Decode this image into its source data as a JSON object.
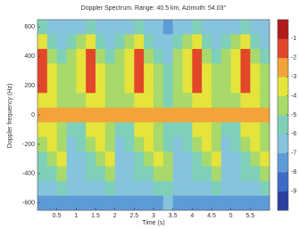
{
  "chart_data": {
    "type": "heatmap",
    "title": "Doppler Spectrum. Range: 40.5 km, Azimuth: 54.03°",
    "xlabel": "Time (s)",
    "ylabel": "Doppler frequency (Hz)",
    "x": [
      0.125,
      0.375,
      0.625,
      0.875,
      1.125,
      1.375,
      1.625,
      1.875,
      2.125,
      2.375,
      2.625,
      2.875,
      3.125,
      3.375,
      3.625,
      3.875,
      4.125,
      4.375,
      4.625,
      4.875,
      5.125,
      5.375,
      5.625,
      5.875
    ],
    "y": [
      600,
      500,
      400,
      300,
      200,
      100,
      0,
      -100,
      -200,
      -300,
      -400,
      -500,
      -600
    ],
    "z": [
      [
        -6,
        -7,
        -7,
        -7,
        -7,
        -6,
        -7,
        -7,
        -7,
        -7,
        -6,
        -7,
        -7,
        -8,
        -7,
        -7,
        -6,
        -7,
        -7,
        -7,
        -7,
        -6,
        -7,
        -7
      ],
      [
        -4,
        -6,
        -7,
        -6,
        -5,
        -4,
        -6,
        -7,
        -6,
        -5,
        -4,
        -6,
        -7,
        -7,
        -6,
        -5,
        -4,
        -6,
        -7,
        -6,
        -5,
        -4,
        -6,
        -7
      ],
      [
        -2,
        -5,
        -6,
        -5,
        -4,
        -2,
        -5,
        -6,
        -5,
        -4,
        -2,
        -5,
        -6,
        -7,
        -5,
        -4,
        -2,
        -5,
        -6,
        -5,
        -4,
        -2,
        -5,
        -6
      ],
      [
        -2,
        -4,
        -5,
        -5,
        -4,
        -2,
        -4,
        -5,
        -5,
        -4,
        -2,
        -4,
        -5,
        -6,
        -5,
        -4,
        -2,
        -4,
        -5,
        -5,
        -4,
        -2,
        -4,
        -5
      ],
      [
        -2,
        -4,
        -5,
        -5,
        -4,
        -2,
        -4,
        -5,
        -5,
        -4,
        -2,
        -4,
        -5,
        -6,
        -5,
        -4,
        -2,
        -4,
        -5,
        -5,
        -4,
        -2,
        -4,
        -5
      ],
      [
        -4,
        -4,
        -5,
        -5,
        -5,
        -4,
        -4,
        -5,
        -5,
        -5,
        -4,
        -4,
        -5,
        -6,
        -5,
        -5,
        -4,
        -4,
        -5,
        -5,
        -5,
        -4,
        -4,
        -5
      ],
      [
        -3,
        -3,
        -3,
        -3,
        -3,
        -3,
        -3,
        -3,
        -3,
        -3,
        -3,
        -3,
        -3,
        -3,
        -3,
        -3,
        -3,
        -3,
        -3,
        -3,
        -3,
        -3,
        -3,
        -3
      ],
      [
        -4,
        -4,
        -5,
        -6,
        -6,
        -4,
        -4,
        -5,
        -6,
        -6,
        -4,
        -4,
        -5,
        -6,
        -6,
        -6,
        -4,
        -4,
        -5,
        -6,
        -6,
        -4,
        -4,
        -5
      ],
      [
        -5,
        -4,
        -5,
        -7,
        -6,
        -5,
        -4,
        -5,
        -7,
        -6,
        -5,
        -4,
        -5,
        -6,
        -7,
        -6,
        -5,
        -4,
        -5,
        -7,
        -6,
        -5,
        -4,
        -5
      ],
      [
        -6,
        -5,
        -4,
        -7,
        -7,
        -6,
        -5,
        -4,
        -7,
        -7,
        -6,
        -5,
        -4,
        -5,
        -7,
        -7,
        -6,
        -5,
        -4,
        -7,
        -7,
        -6,
        -5,
        -4
      ],
      [
        -6,
        -6,
        -5,
        -7,
        -7,
        -6,
        -6,
        -5,
        -7,
        -7,
        -6,
        -6,
        -5,
        -5,
        -7,
        -7,
        -6,
        -6,
        -5,
        -7,
        -7,
        -6,
        -6,
        -5
      ],
      [
        -7,
        -7,
        -6,
        -7,
        -7,
        -7,
        -7,
        -6,
        -7,
        -7,
        -7,
        -7,
        -6,
        -6,
        -7,
        -7,
        -7,
        -7,
        -6,
        -7,
        -7,
        -7,
        -7,
        -6
      ],
      [
        -8,
        -8,
        -8,
        -8,
        -8,
        -8,
        -8,
        -8,
        -8,
        -8,
        -8,
        -8,
        -8,
        -7,
        -8,
        -8,
        -8,
        -8,
        -8,
        -8,
        -8,
        -8,
        -8,
        -8
      ]
    ],
    "xlim": [
      0,
      6
    ],
    "ylim": [
      -650,
      650
    ],
    "xticks": [
      0.5,
      1,
      1.5,
      2,
      2.5,
      3,
      3.5,
      4,
      4.5,
      5,
      5.5
    ],
    "yticks": [
      -600,
      -400,
      -200,
      0,
      200,
      400,
      600
    ],
    "clim": [
      -10,
      0
    ],
    "cticks": [
      -1,
      -2,
      -3,
      -4,
      -5,
      -6,
      -7,
      -8,
      -9
    ],
    "colormap": [
      "#2a3fa0",
      "#3d6cc8",
      "#5d9ad8",
      "#86c3dc",
      "#7fd0b8",
      "#a8d96a",
      "#e4e43c",
      "#f2a43a",
      "#e2472a",
      "#b01a1a"
    ]
  }
}
